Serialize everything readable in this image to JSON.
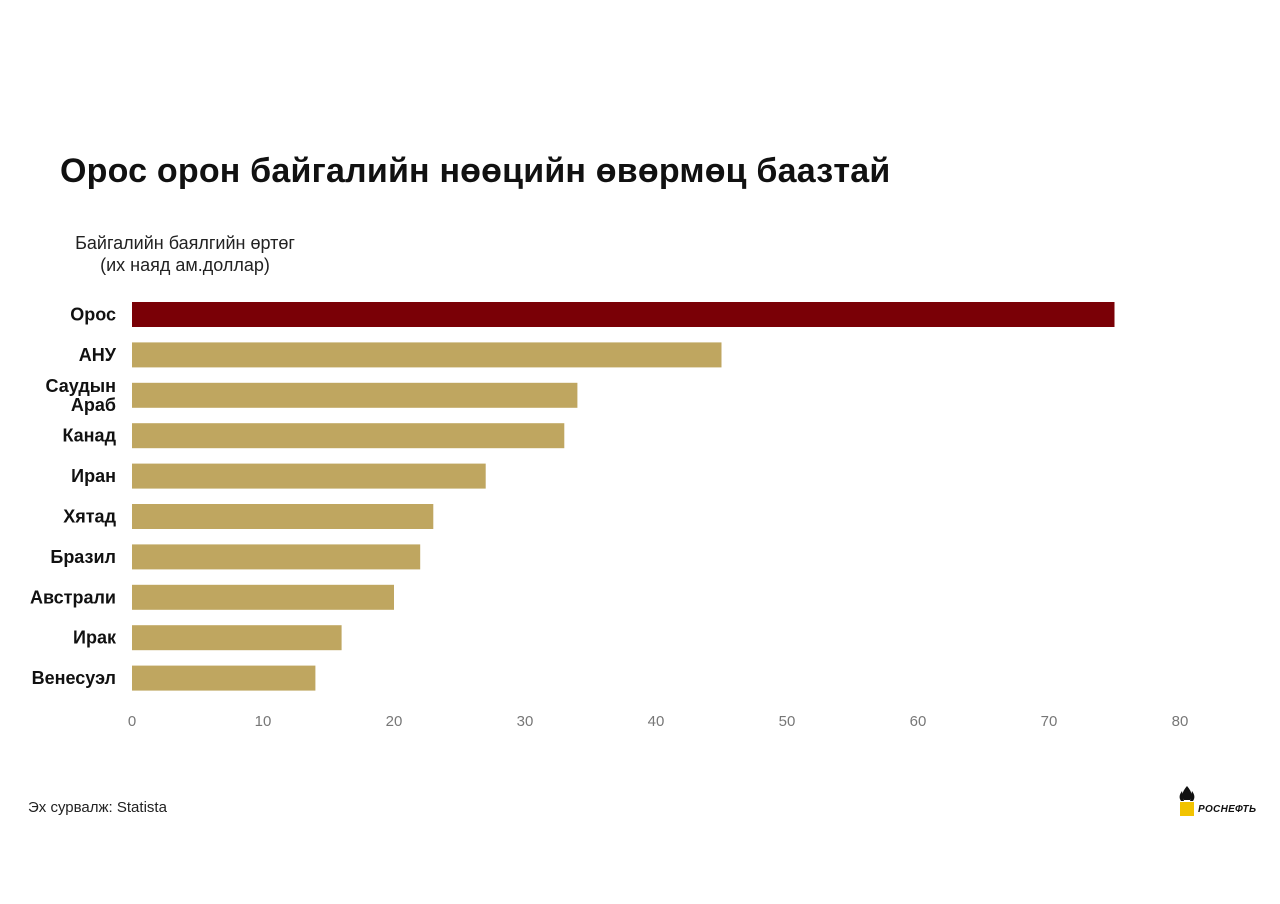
{
  "chart_data": {
    "type": "bar",
    "orientation": "horizontal",
    "title": "Орос орон байгалийн нөөцийн өвөрмөц баазтай",
    "ylabel_lines": [
      "Байгалийн баялгийн өртөг",
      "(их наяд ам.доллар)"
    ],
    "categories": [
      [
        "Орос"
      ],
      [
        "АНУ"
      ],
      [
        "Саудын",
        "Араб"
      ],
      [
        "Канад"
      ],
      [
        "Иран"
      ],
      [
        "Хятад"
      ],
      [
        "Бразил"
      ],
      [
        "Австрали"
      ],
      [
        "Ирак"
      ],
      [
        "Венесуэл"
      ]
    ],
    "values": [
      75,
      45,
      34,
      33,
      27,
      23,
      22,
      20,
      16,
      14
    ],
    "xlim": [
      0,
      80
    ],
    "xticks": [
      0,
      10,
      20,
      30,
      40,
      50,
      60,
      70,
      80
    ],
    "grid": false,
    "colors": {
      "highlight": "#7a0006",
      "bar": "#bfa660",
      "tick": "#777777"
    },
    "highlight_index": 0
  },
  "source": "Эх сурвалж: Statista",
  "logo": {
    "icon": "rosneft-logo-icon",
    "text": "РОСНЕФТЬ"
  }
}
